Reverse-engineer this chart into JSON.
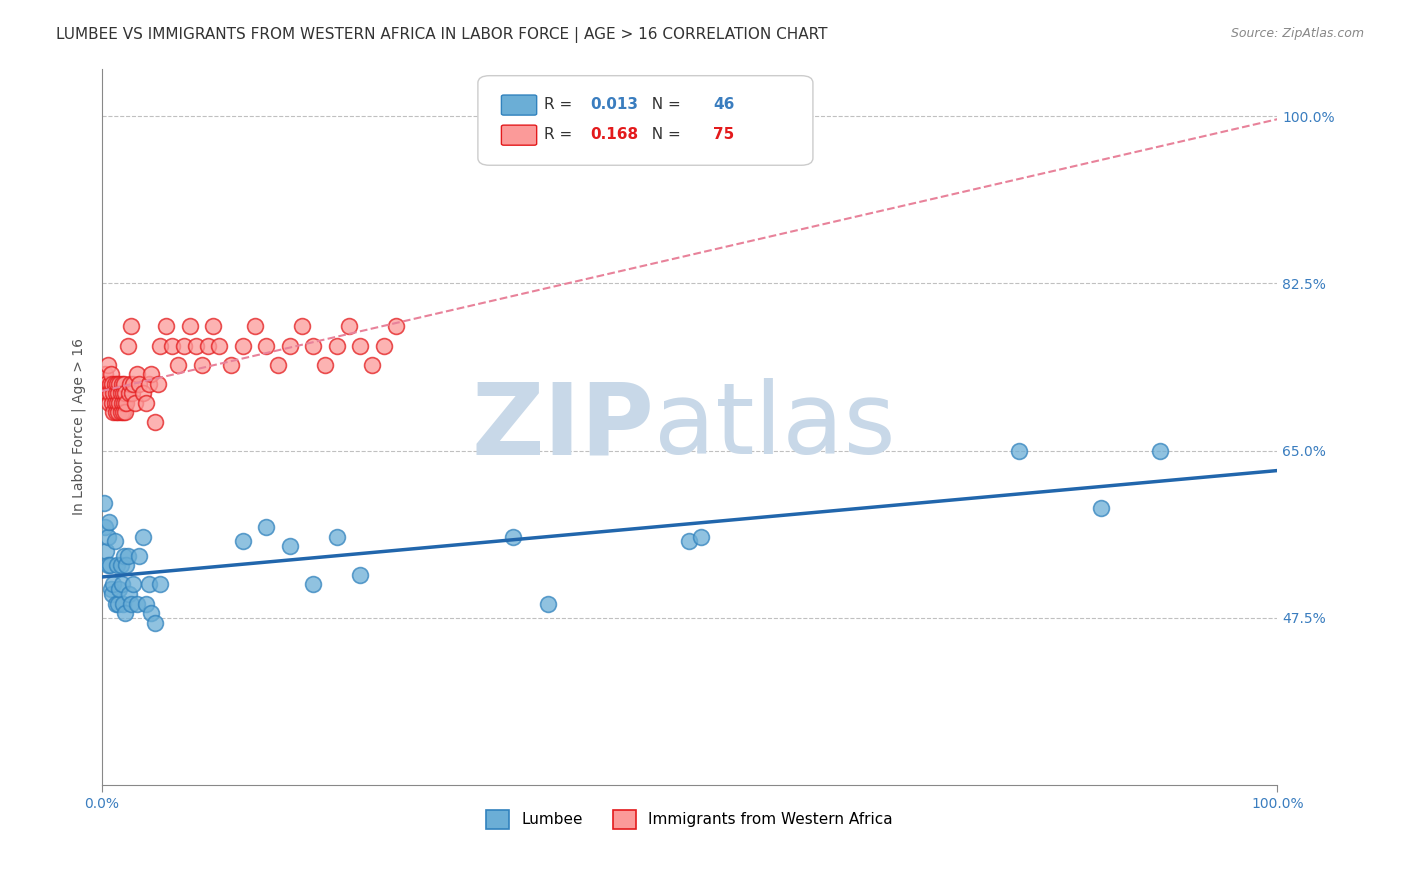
{
  "title": "LUMBEE VS IMMIGRANTS FROM WESTERN AFRICA IN LABOR FORCE | AGE > 16 CORRELATION CHART",
  "source": "Source: ZipAtlas.com",
  "ylabel": "In Labor Force | Age > 16",
  "xlabel_lumbee": "Lumbee",
  "xlabel_immigrants": "Immigrants from Western Africa",
  "xmin": 0.0,
  "xmax": 1.0,
  "ymin": 0.3,
  "ymax": 1.05,
  "grid_yticks": [
    0.475,
    0.65,
    0.825,
    1.0
  ],
  "background_color": "#ffffff",
  "plot_bg_color": "#ffffff",
  "lumbee_color": "#6baed6",
  "immigrants_color": "#fb9a99",
  "lumbee_edge_color": "#3182bd",
  "immigrants_edge_color": "#e31a1c",
  "lumbee_R": "0.013",
  "lumbee_N": "46",
  "immigrants_R": "0.168",
  "immigrants_N": "75",
  "lumbee_trend_color": "#2166ac",
  "immigrants_trend_color": "#e8829a",
  "title_fontsize": 11,
  "axis_label_fontsize": 10,
  "tick_label_fontsize": 10,
  "legend_fontsize": 11,
  "lumbee_points_x": [
    0.002,
    0.003,
    0.004,
    0.005,
    0.005,
    0.006,
    0.007,
    0.008,
    0.009,
    0.01,
    0.011,
    0.012,
    0.013,
    0.014,
    0.015,
    0.016,
    0.017,
    0.018,
    0.019,
    0.02,
    0.021,
    0.022,
    0.023,
    0.025,
    0.027,
    0.03,
    0.032,
    0.035,
    0.038,
    0.04,
    0.042,
    0.045,
    0.05,
    0.12,
    0.14,
    0.16,
    0.18,
    0.2,
    0.22,
    0.35,
    0.38,
    0.5,
    0.51,
    0.78,
    0.85,
    0.9
  ],
  "lumbee_points_y": [
    0.595,
    0.57,
    0.545,
    0.53,
    0.56,
    0.575,
    0.53,
    0.505,
    0.5,
    0.51,
    0.555,
    0.49,
    0.53,
    0.49,
    0.505,
    0.53,
    0.51,
    0.49,
    0.54,
    0.48,
    0.53,
    0.54,
    0.5,
    0.49,
    0.51,
    0.49,
    0.54,
    0.56,
    0.49,
    0.51,
    0.48,
    0.47,
    0.51,
    0.555,
    0.57,
    0.55,
    0.51,
    0.56,
    0.52,
    0.56,
    0.49,
    0.555,
    0.56,
    0.65,
    0.59,
    0.65
  ],
  "immigrants_points_x": [
    0.002,
    0.003,
    0.004,
    0.005,
    0.005,
    0.006,
    0.007,
    0.007,
    0.008,
    0.009,
    0.009,
    0.01,
    0.01,
    0.011,
    0.011,
    0.012,
    0.012,
    0.013,
    0.013,
    0.014,
    0.014,
    0.015,
    0.015,
    0.016,
    0.016,
    0.017,
    0.017,
    0.018,
    0.018,
    0.019,
    0.019,
    0.02,
    0.02,
    0.021,
    0.022,
    0.023,
    0.024,
    0.025,
    0.026,
    0.027,
    0.028,
    0.03,
    0.032,
    0.035,
    0.038,
    0.04,
    0.042,
    0.045,
    0.048,
    0.05,
    0.055,
    0.06,
    0.065,
    0.07,
    0.075,
    0.08,
    0.085,
    0.09,
    0.095,
    0.1,
    0.11,
    0.12,
    0.13,
    0.14,
    0.15,
    0.16,
    0.17,
    0.18,
    0.19,
    0.2,
    0.21,
    0.22,
    0.23,
    0.24,
    0.25
  ],
  "immigrants_points_y": [
    0.72,
    0.73,
    0.72,
    0.71,
    0.74,
    0.7,
    0.72,
    0.71,
    0.73,
    0.7,
    0.72,
    0.69,
    0.71,
    0.7,
    0.72,
    0.69,
    0.71,
    0.7,
    0.72,
    0.69,
    0.71,
    0.7,
    0.72,
    0.69,
    0.71,
    0.7,
    0.72,
    0.69,
    0.71,
    0.7,
    0.72,
    0.69,
    0.71,
    0.7,
    0.76,
    0.71,
    0.72,
    0.78,
    0.71,
    0.72,
    0.7,
    0.73,
    0.72,
    0.71,
    0.7,
    0.72,
    0.73,
    0.68,
    0.72,
    0.76,
    0.78,
    0.76,
    0.74,
    0.76,
    0.78,
    0.76,
    0.74,
    0.76,
    0.78,
    0.76,
    0.74,
    0.76,
    0.78,
    0.76,
    0.74,
    0.76,
    0.78,
    0.76,
    0.74,
    0.76,
    0.78,
    0.76,
    0.74,
    0.76,
    0.78
  ],
  "watermark_zip": "ZIP",
  "watermark_atlas": "atlas",
  "watermark_color": "#c8d8e8",
  "watermark_fontsize": 72
}
